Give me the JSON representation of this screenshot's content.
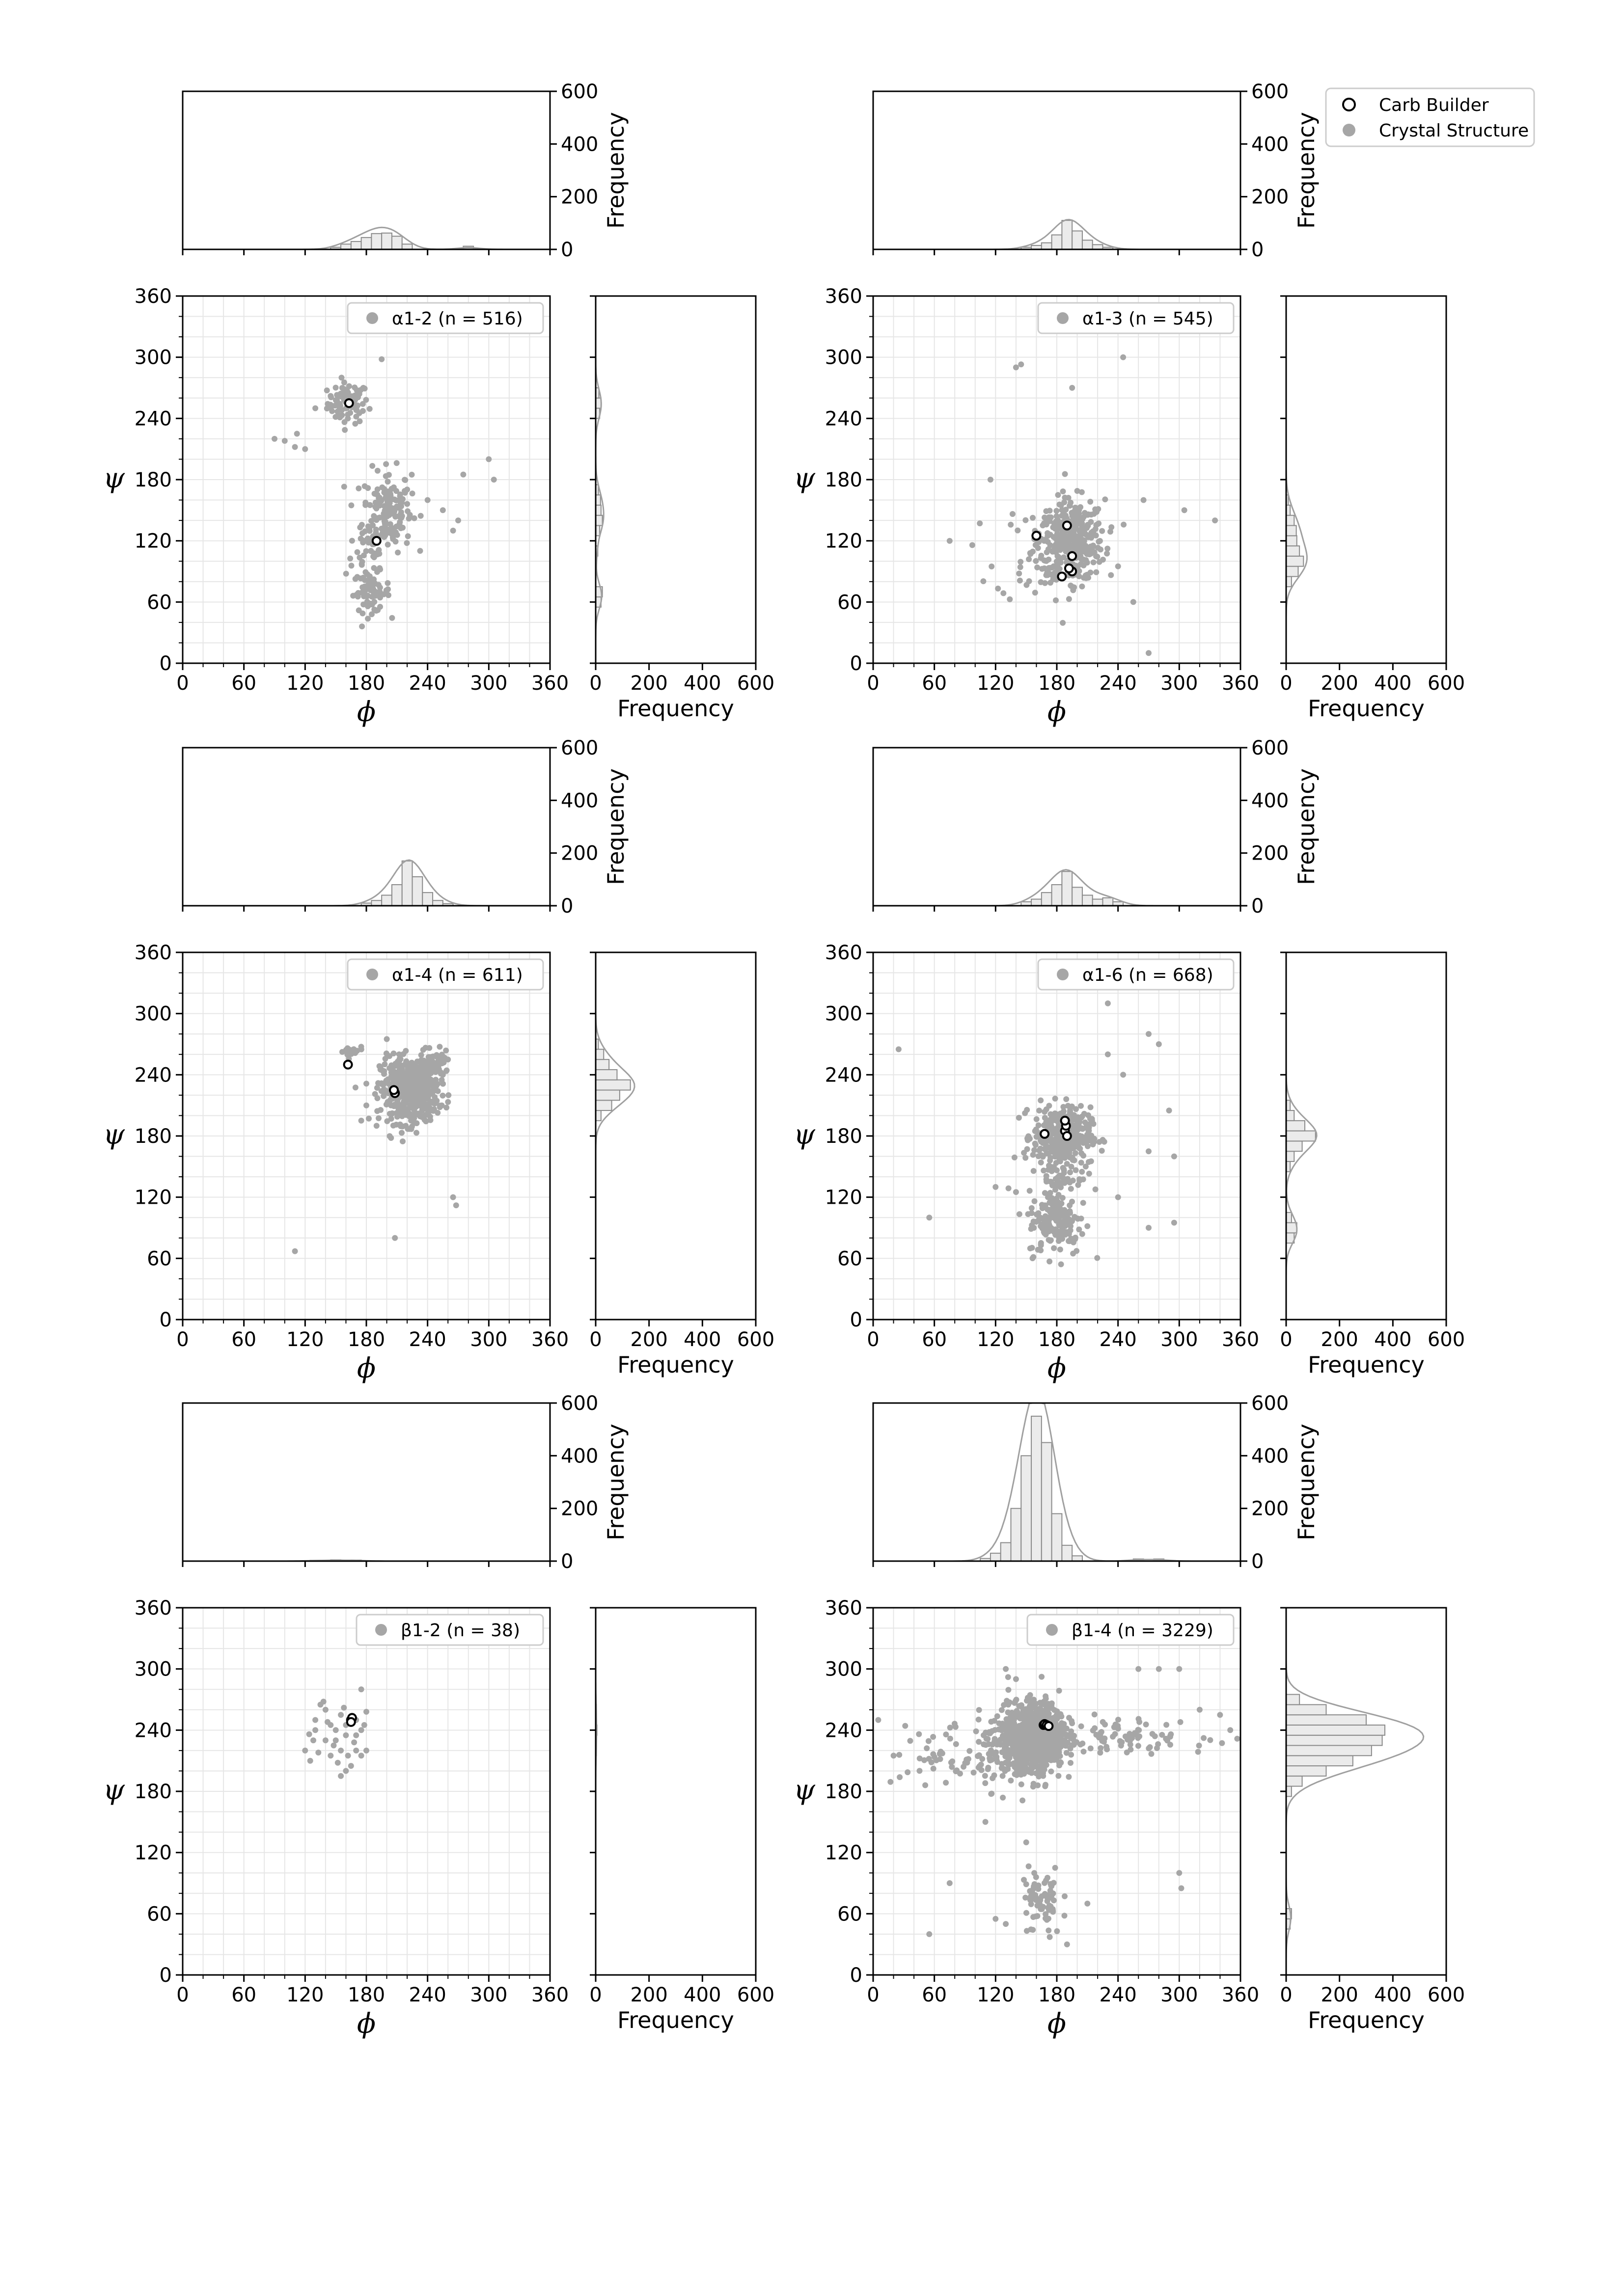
{
  "figure": {
    "legend": {
      "carb_label": "Carb Builder",
      "crystal_label": "Crystal Structure"
    }
  },
  "chart_data": [
    {
      "type": "scatter",
      "label": "α1-2 (n = 516)",
      "xlabel": "ϕ",
      "ylabel": "ψ",
      "xlim": [
        0,
        360
      ],
      "ylim": [
        0,
        360
      ],
      "ticks": [
        0,
        60,
        120,
        180,
        240,
        300,
        360
      ],
      "hist_label": "Frequency",
      "hist_ticks": [
        0,
        200,
        400,
        600
      ],
      "hist_lim": [
        0,
        600
      ],
      "crystal_clusters": [
        {
          "cx": 162,
          "cy": 255,
          "sx": 10,
          "sy": 10,
          "n": 80
        },
        {
          "cx": 200,
          "cy": 150,
          "sx": 12,
          "sy": 20,
          "n": 170
        },
        {
          "cx": 185,
          "cy": 70,
          "sx": 9,
          "sy": 10,
          "n": 70
        },
        {
          "cx": 180,
          "cy": 110,
          "sx": 10,
          "sy": 12,
          "n": 30
        }
      ],
      "crystal_extra": [
        [
          90,
          220
        ],
        [
          100,
          218
        ],
        [
          112,
          225
        ],
        [
          120,
          210
        ],
        [
          130,
          250
        ],
        [
          110,
          212
        ],
        [
          240,
          160
        ],
        [
          255,
          150
        ],
        [
          265,
          130
        ],
        [
          275,
          185
        ],
        [
          300,
          200
        ],
        [
          305,
          180
        ],
        [
          270,
          140
        ],
        [
          195,
          298
        ],
        [
          145,
          262
        ]
      ],
      "carb_builder": [
        [
          163,
          255
        ],
        [
          190,
          120
        ]
      ],
      "phi_hist": {
        "centers": [
          150,
          160,
          170,
          180,
          190,
          200,
          210,
          220,
          280
        ],
        "freq": [
          8,
          20,
          30,
          45,
          60,
          62,
          50,
          20,
          12
        ]
      },
      "psi_hist": {
        "centers": [
          60,
          70,
          110,
          130,
          140,
          150,
          160,
          170,
          245,
          255,
          265
        ],
        "freq": [
          20,
          25,
          8,
          15,
          25,
          20,
          18,
          10,
          15,
          20,
          12
        ]
      }
    },
    {
      "type": "scatter",
      "label": "α1-3 (n = 545)",
      "xlabel": "ϕ",
      "ylabel": "ψ",
      "xlim": [
        0,
        360
      ],
      "ylim": [
        0,
        360
      ],
      "ticks": [
        0,
        60,
        120,
        180,
        240,
        300,
        360
      ],
      "hist_label": "Frequency",
      "hist_ticks": [
        0,
        200,
        400,
        600
      ],
      "hist_lim": [
        0,
        600
      ],
      "crystal_clusters": [
        {
          "cx": 195,
          "cy": 120,
          "sx": 16,
          "sy": 20,
          "n": 330
        },
        {
          "cx": 170,
          "cy": 110,
          "sx": 25,
          "sy": 25,
          "n": 80
        }
      ],
      "crystal_extra": [
        [
          140,
          290
        ],
        [
          145,
          293
        ],
        [
          195,
          270
        ],
        [
          245,
          300
        ],
        [
          115,
          180
        ],
        [
          75,
          120
        ],
        [
          335,
          140
        ],
        [
          270,
          10
        ],
        [
          305,
          150
        ],
        [
          255,
          60
        ],
        [
          265,
          160
        ],
        [
          240,
          95
        ]
      ],
      "carb_builder": [
        [
          160,
          125
        ],
        [
          190,
          135
        ],
        [
          195,
          105
        ],
        [
          185,
          85
        ],
        [
          195,
          90
        ],
        [
          192,
          93
        ]
      ],
      "phi_hist": {
        "centers": [
          150,
          160,
          170,
          180,
          190,
          200,
          210,
          220,
          230
        ],
        "freq": [
          8,
          15,
          25,
          55,
          110,
          70,
          35,
          18,
          8
        ]
      },
      "psi_hist": {
        "centers": [
          80,
          90,
          100,
          110,
          120,
          130,
          140,
          150,
          160
        ],
        "freq": [
          20,
          45,
          65,
          50,
          40,
          38,
          30,
          15,
          8
        ]
      }
    },
    {
      "type": "scatter",
      "label": "α1-4 (n = 611)",
      "xlabel": "ϕ",
      "ylabel": "ψ",
      "xlim": [
        0,
        360
      ],
      "ylim": [
        0,
        360
      ],
      "ticks": [
        0,
        60,
        120,
        180,
        240,
        300,
        360
      ],
      "hist_label": "Frequency",
      "hist_ticks": [
        0,
        200,
        400,
        600
      ],
      "hist_lim": [
        0,
        600
      ],
      "crystal_clusters": [
        {
          "cx": 222,
          "cy": 225,
          "sx": 14,
          "sy": 16,
          "n": 480
        },
        {
          "cx": 245,
          "cy": 250,
          "sx": 8,
          "sy": 6,
          "n": 60
        },
        {
          "cx": 165,
          "cy": 262,
          "sx": 6,
          "sy": 3,
          "n": 20
        }
      ],
      "crystal_extra": [
        [
          110,
          67
        ],
        [
          208,
          80
        ],
        [
          265,
          120
        ],
        [
          268,
          112
        ],
        [
          175,
          195
        ],
        [
          190,
          190
        ],
        [
          260,
          255
        ],
        [
          255,
          240
        ],
        [
          200,
          275
        ],
        [
          180,
          210
        ]
      ],
      "carb_builder": [
        [
          162,
          250
        ],
        [
          208,
          222
        ],
        [
          207,
          225
        ]
      ],
      "phi_hist": {
        "centers": [
          180,
          190,
          200,
          210,
          220,
          230,
          240,
          250,
          260
        ],
        "freq": [
          10,
          20,
          40,
          80,
          170,
          110,
          50,
          20,
          8
        ]
      },
      "psi_hist": {
        "centers": [
          200,
          210,
          220,
          230,
          240,
          250,
          260,
          270
        ],
        "freq": [
          20,
          60,
          90,
          130,
          80,
          50,
          30,
          10
        ]
      }
    },
    {
      "type": "scatter",
      "label": "α1-6 (n = 668)",
      "xlabel": "ϕ",
      "ylabel": "ψ",
      "xlim": [
        0,
        360
      ],
      "ylim": [
        0,
        360
      ],
      "ticks": [
        0,
        60,
        120,
        180,
        240,
        300,
        360
      ],
      "hist_label": "Frequency",
      "hist_ticks": [
        0,
        200,
        400,
        600
      ],
      "hist_lim": [
        0,
        600
      ],
      "crystal_clusters": [
        {
          "cx": 185,
          "cy": 180,
          "sx": 14,
          "sy": 14,
          "n": 360
        },
        {
          "cx": 180,
          "cy": 95,
          "sx": 14,
          "sy": 16,
          "n": 150
        },
        {
          "cx": 185,
          "cy": 140,
          "sx": 12,
          "sy": 15,
          "n": 60
        }
      ],
      "crystal_extra": [
        [
          25,
          265
        ],
        [
          55,
          100
        ],
        [
          230,
          310
        ],
        [
          270,
          280
        ],
        [
          280,
          270
        ],
        [
          290,
          205
        ],
        [
          295,
          160
        ],
        [
          295,
          95
        ],
        [
          270,
          90
        ],
        [
          240,
          120
        ],
        [
          230,
          260
        ],
        [
          245,
          240
        ],
        [
          270,
          165
        ],
        [
          120,
          130
        ],
        [
          140,
          125
        ]
      ],
      "carb_builder": [
        [
          168,
          182
        ],
        [
          188,
          185
        ],
        [
          189,
          190
        ],
        [
          190,
          180
        ],
        [
          188,
          195
        ]
      ],
      "phi_hist": {
        "centers": [
          150,
          160,
          170,
          180,
          190,
          200,
          210,
          220,
          230,
          240
        ],
        "freq": [
          15,
          25,
          50,
          80,
          130,
          70,
          40,
          25,
          30,
          15
        ]
      },
      "psi_hist": {
        "centers": [
          80,
          90,
          100,
          150,
          160,
          170,
          180,
          190,
          200,
          210
        ],
        "freq": [
          30,
          40,
          20,
          15,
          30,
          60,
          110,
          70,
          30,
          15
        ]
      }
    },
    {
      "type": "scatter",
      "label": "β1-2 (n = 38)",
      "xlabel": "ϕ",
      "ylabel": "ψ",
      "xlim": [
        0,
        360
      ],
      "ylim": [
        0,
        360
      ],
      "ticks": [
        0,
        60,
        120,
        180,
        240,
        300,
        360
      ],
      "hist_label": "Frequency",
      "hist_ticks": [
        0,
        200,
        400,
        600
      ],
      "hist_lim": [
        0,
        600
      ],
      "crystal_clusters": [],
      "crystal_extra": [
        [
          120,
          220
        ],
        [
          125,
          210
        ],
        [
          130,
          240
        ],
        [
          135,
          265
        ],
        [
          140,
          260
        ],
        [
          145,
          245
        ],
        [
          150,
          230
        ],
        [
          155,
          220
        ],
        [
          160,
          235
        ],
        [
          165,
          205
        ],
        [
          170,
          220
        ],
        [
          175,
          240
        ],
        [
          180,
          258
        ],
        [
          175,
          280
        ],
        [
          155,
          195
        ],
        [
          145,
          215
        ],
        [
          130,
          250
        ],
        [
          160,
          245
        ],
        [
          170,
          250
        ],
        [
          165,
          252
        ],
        [
          138,
          268
        ],
        [
          150,
          240
        ],
        [
          128,
          230
        ],
        [
          175,
          215
        ],
        [
          180,
          220
        ],
        [
          160,
          200
        ],
        [
          140,
          230
        ],
        [
          155,
          255
        ],
        [
          170,
          235
        ],
        [
          133,
          218
        ],
        [
          148,
          225
        ],
        [
          162,
          215
        ],
        [
          178,
          245
        ],
        [
          142,
          248
        ],
        [
          152,
          208
        ],
        [
          168,
          228
        ],
        [
          124,
          236
        ],
        [
          158,
          262
        ]
      ],
      "carb_builder": [
        [
          165,
          250
        ],
        [
          166,
          252
        ],
        [
          165,
          248
        ]
      ],
      "phi_hist": {
        "centers": [
          130,
          150,
          170
        ],
        "freq": [
          3,
          5,
          4
        ]
      },
      "psi_hist": {
        "centers": [
          220,
          240,
          260
        ],
        "freq": [
          3,
          5,
          3
        ]
      }
    },
    {
      "type": "scatter",
      "label": "β1-4 (n = 3229)",
      "xlabel": "ϕ",
      "ylabel": "ψ",
      "xlim": [
        0,
        360
      ],
      "ylim": [
        0,
        360
      ],
      "ticks": [
        0,
        60,
        120,
        180,
        240,
        300,
        360
      ],
      "hist_label": "Frequency",
      "hist_ticks": [
        0,
        200,
        400,
        600
      ],
      "hist_lim": [
        0,
        600
      ],
      "crystal_clusters": [
        {
          "cx": 160,
          "cy": 235,
          "sx": 14,
          "sy": 16,
          "n": 820
        },
        {
          "cx": 140,
          "cy": 220,
          "sx": 18,
          "sy": 18,
          "n": 180
        },
        {
          "cx": 165,
          "cy": 70,
          "sx": 10,
          "sy": 18,
          "n": 70
        },
        {
          "cx": 240,
          "cy": 235,
          "sx": 45,
          "sy": 8,
          "n": 90
        },
        {
          "cx": 80,
          "cy": 215,
          "sx": 30,
          "sy": 15,
          "n": 60
        }
      ],
      "crystal_extra": [
        [
          5,
          250
        ],
        [
          20,
          215
        ],
        [
          55,
          40
        ],
        [
          75,
          90
        ],
        [
          300,
          100
        ],
        [
          302,
          85
        ],
        [
          320,
          260
        ],
        [
          340,
          255
        ],
        [
          350,
          240
        ],
        [
          300,
          300
        ],
        [
          280,
          300
        ],
        [
          260,
          300
        ],
        [
          130,
          300
        ],
        [
          140,
          290
        ],
        [
          110,
          150
        ],
        [
          120,
          55
        ],
        [
          130,
          50
        ],
        [
          210,
          70
        ],
        [
          190,
          30
        ],
        [
          150,
          130
        ]
      ],
      "carb_builder": [
        [
          167,
          245
        ],
        [
          168,
          246
        ],
        [
          170,
          245
        ],
        [
          172,
          244
        ]
      ],
      "phi_hist": {
        "centers": [
          110,
          120,
          130,
          140,
          150,
          160,
          170,
          180,
          190,
          200,
          260,
          280
        ],
        "freq": [
          10,
          30,
          70,
          200,
          400,
          550,
          450,
          180,
          60,
          20,
          8,
          8
        ]
      },
      "psi_hist": {
        "centers": [
          50,
          60,
          180,
          190,
          200,
          210,
          220,
          230,
          240,
          250,
          260,
          270
        ],
        "freq": [
          15,
          20,
          20,
          60,
          150,
          250,
          320,
          360,
          370,
          300,
          150,
          50
        ]
      }
    }
  ]
}
